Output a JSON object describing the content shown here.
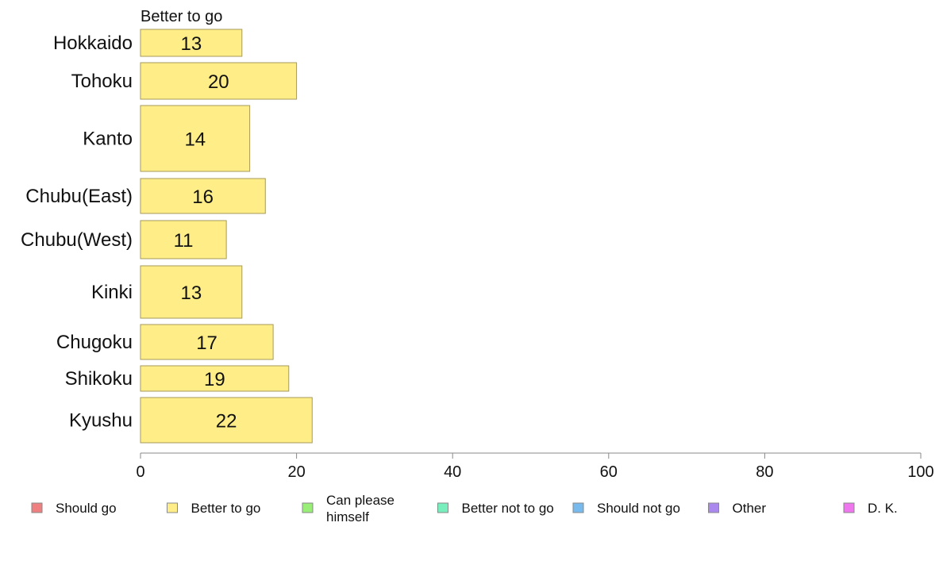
{
  "chart_data": {
    "type": "bar",
    "orientation": "horizontal",
    "stacked": true,
    "series_title": "Better to go",
    "categories": [
      "Hokkaido",
      "Tohoku",
      "Kanto",
      "Chubu(East)",
      "Chubu(West)",
      "Kinki",
      "Chugoku",
      "Shikoku",
      "Kyushu"
    ],
    "series": [
      {
        "name": "Better to go",
        "color": "#ffee88",
        "values": [
          13,
          20,
          14,
          16,
          11,
          13,
          17,
          19,
          22
        ]
      }
    ],
    "xlim": [
      0,
      100
    ],
    "x_ticks": [
      0,
      20,
      40,
      60,
      80,
      100
    ],
    "grid": false,
    "legend_position": "bottom",
    "legend": [
      {
        "label": "Should go",
        "color": "#f08080"
      },
      {
        "label": "Better to go",
        "color": "#ffee88"
      },
      {
        "label": "Can please himself",
        "color": "#99ee77"
      },
      {
        "label": "Better not to go",
        "color": "#77eebb"
      },
      {
        "label": "Should not go",
        "color": "#77bbee"
      },
      {
        "label": "Other",
        "color": "#aa88ee"
      },
      {
        "label": "D. K.",
        "color": "#ee77ee"
      }
    ]
  }
}
